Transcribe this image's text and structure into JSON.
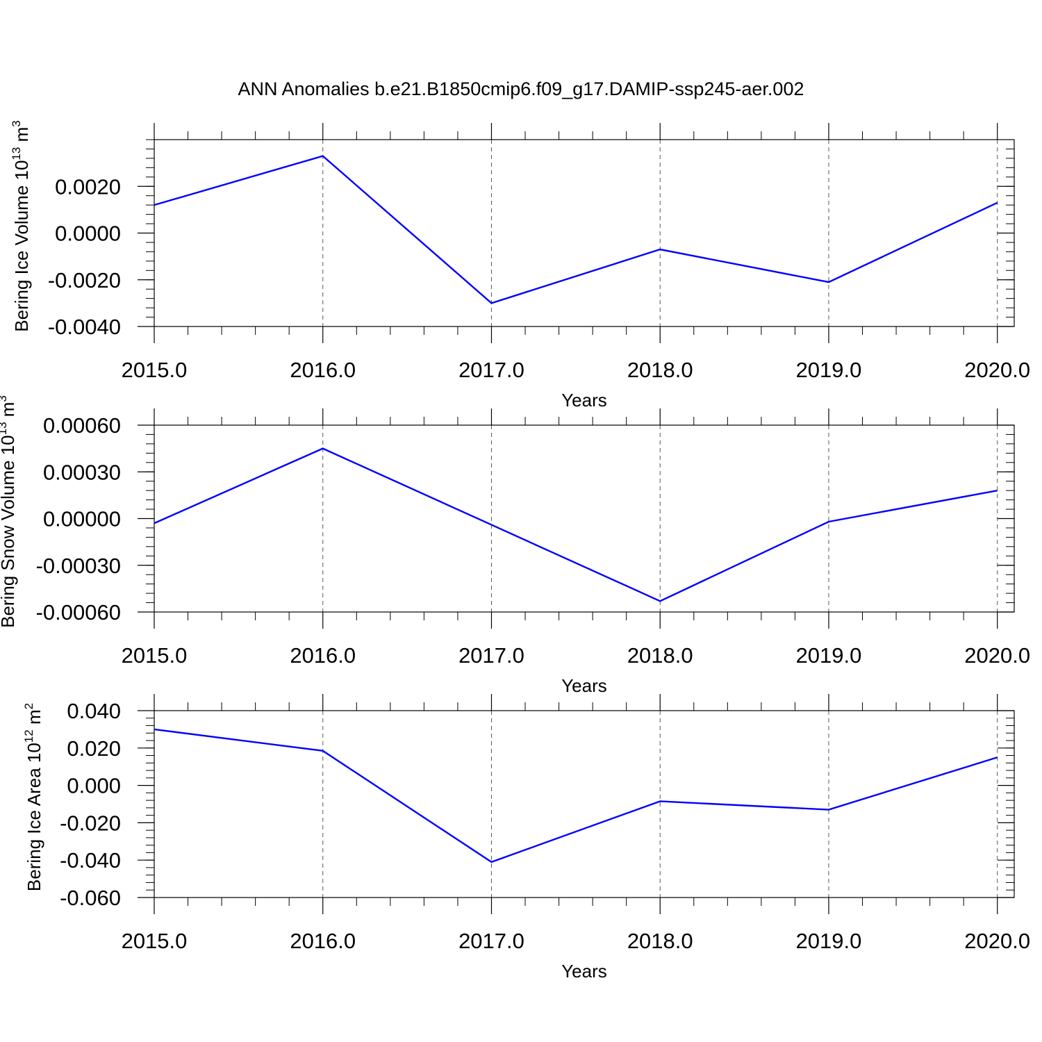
{
  "title": "ANN Anomalies b.e21.B1850cmip6.f09_g17.DAMIP-ssp245-aer.002",
  "colors": {
    "line": "#0000ff",
    "axis": "#000000",
    "grid": "#555555",
    "background": "#ffffff"
  },
  "chart_data": [
    {
      "type": "line",
      "xlabel": "Years",
      "ylabel": {
        "main": "Bering Ice Volume 10",
        "exp": "13",
        "unit": " m",
        "unit_exp": "3"
      },
      "x": [
        2015,
        2016,
        2017,
        2018,
        2019,
        2020
      ],
      "x_tick_labels": [
        "2015.0",
        "2016.0",
        "2017.0",
        "2018.0",
        "2019.0",
        "2020.0"
      ],
      "y_ticks": [
        0.002,
        0.0,
        -0.002,
        -0.004
      ],
      "y_tick_labels": [
        "0.0020",
        "0.0000",
        "-0.0020",
        "-0.0040"
      ],
      "ylim": [
        -0.004,
        0.004
      ],
      "xlim": [
        2015,
        2020.1
      ],
      "vertical_grid": true,
      "series": [
        {
          "values": [
            0.0012,
            0.0033,
            -0.003,
            -0.0007,
            -0.0021,
            0.0013
          ]
        }
      ]
    },
    {
      "type": "line",
      "xlabel": "Years",
      "ylabel": {
        "main": "Bering Snow Volume 10",
        "exp": "13",
        "unit": " m",
        "unit_exp": "3"
      },
      "x": [
        2015,
        2016,
        2017,
        2018,
        2019,
        2020
      ],
      "x_tick_labels": [
        "2015.0",
        "2016.0",
        "2017.0",
        "2018.0",
        "2019.0",
        "2020.0"
      ],
      "y_ticks": [
        0.0006,
        0.0003,
        0.0,
        -0.0003,
        -0.0006
      ],
      "y_tick_labels": [
        "0.00060",
        "0.00030",
        "0.00000",
        "-0.00030",
        "-0.00060"
      ],
      "ylim": [
        -0.0006,
        0.0006
      ],
      "xlim": [
        2015,
        2020.1
      ],
      "vertical_grid": true,
      "series": [
        {
          "values": [
            -3e-05,
            0.00045,
            -4e-05,
            -0.00053,
            -2e-05,
            0.00018
          ]
        }
      ]
    },
    {
      "type": "line",
      "xlabel": "Years",
      "ylabel": {
        "main": "Bering Ice Area 10",
        "exp": "12",
        "unit": " m",
        "unit_exp": "2"
      },
      "x": [
        2015,
        2016,
        2017,
        2018,
        2019,
        2020
      ],
      "x_tick_labels": [
        "2015.0",
        "2016.0",
        "2017.0",
        "2018.0",
        "2019.0",
        "2020.0"
      ],
      "y_ticks": [
        0.04,
        0.02,
        0.0,
        -0.02,
        -0.04,
        -0.06
      ],
      "y_tick_labels": [
        "0.040",
        "0.020",
        "0.000",
        "-0.020",
        "-0.040",
        "-0.060"
      ],
      "ylim": [
        -0.06,
        0.04
      ],
      "xlim": [
        2015,
        2020.1
      ],
      "vertical_grid": true,
      "series": [
        {
          "values": [
            0.03,
            0.0185,
            -0.041,
            -0.0085,
            -0.013,
            0.015
          ]
        }
      ]
    }
  ]
}
